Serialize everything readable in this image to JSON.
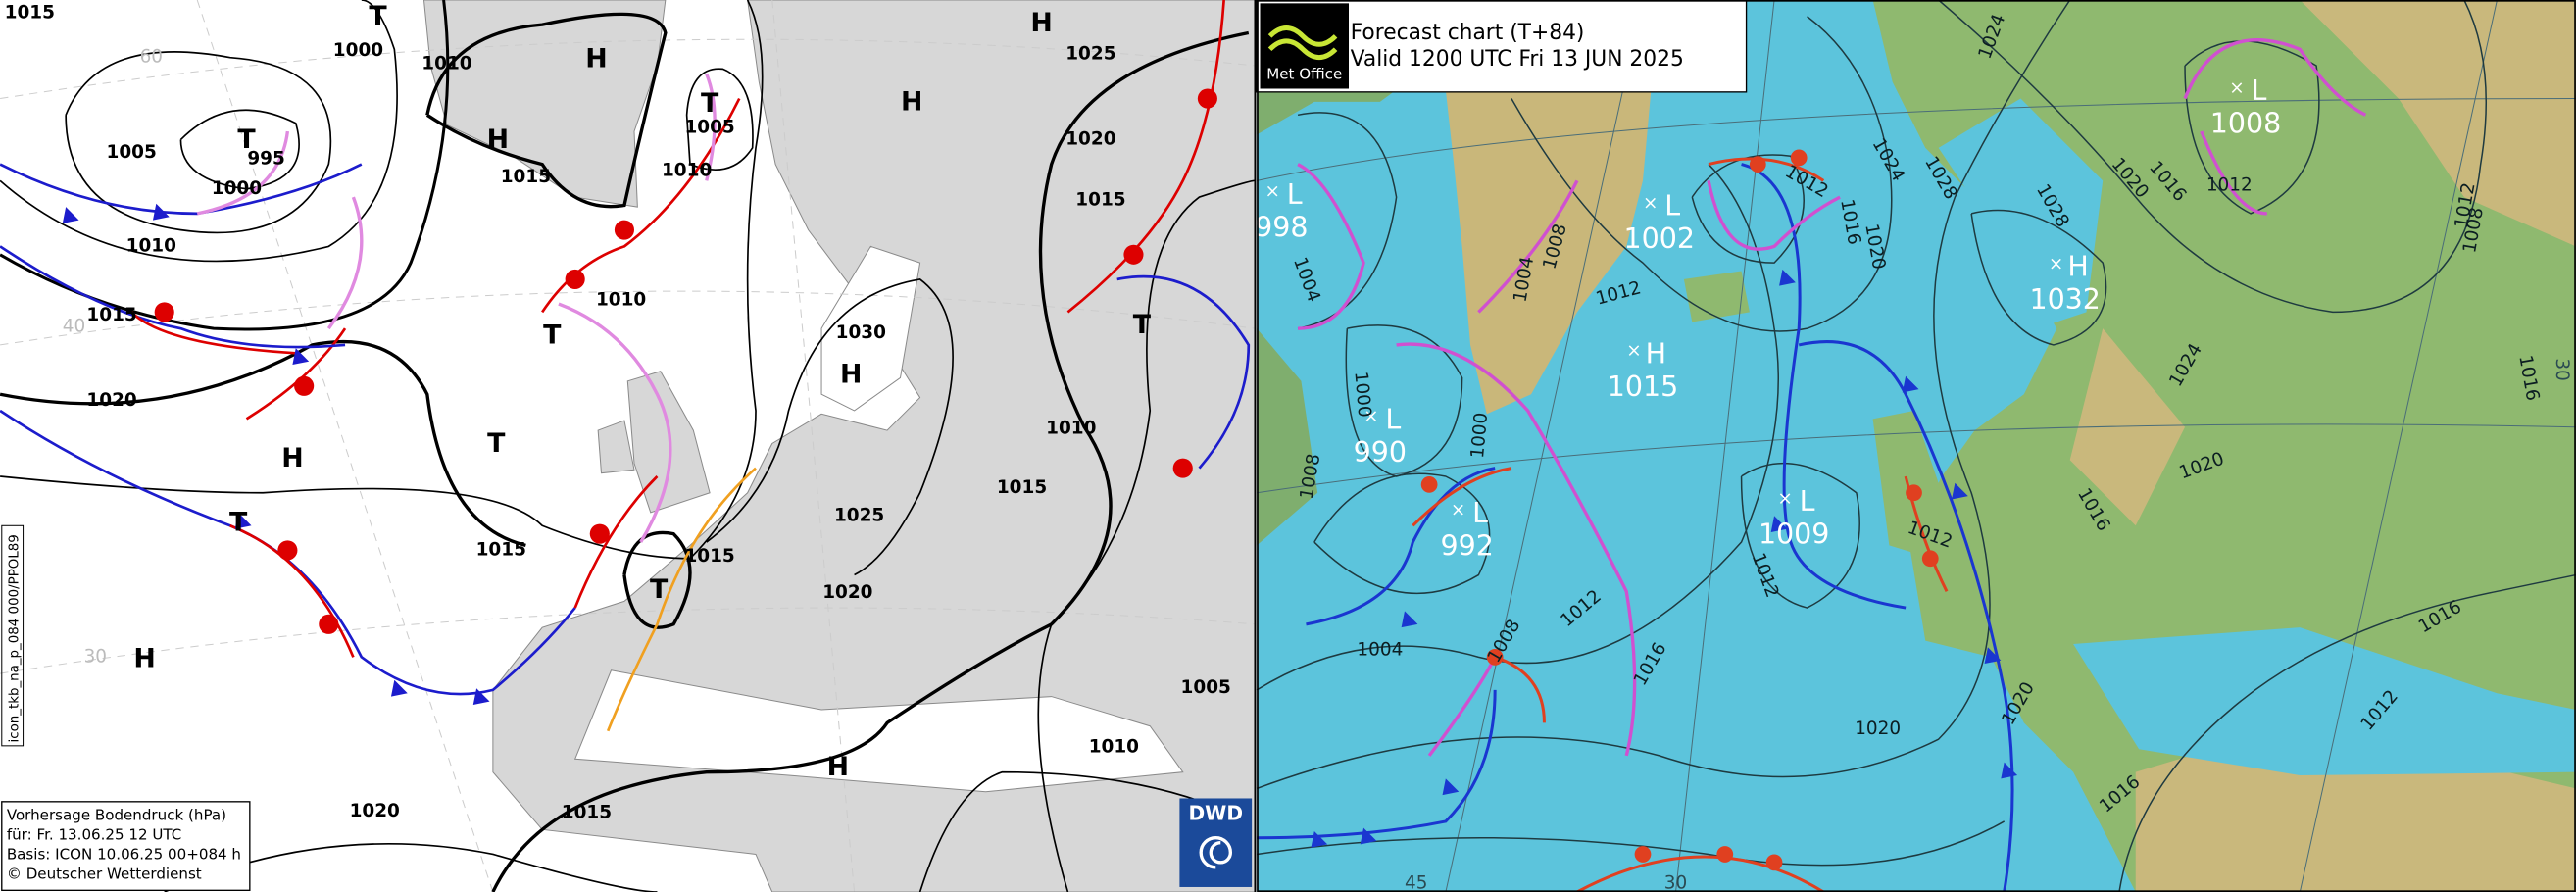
{
  "left_map": {
    "isobar_labels": [
      "1015",
      "1000",
      "1010",
      "1005",
      "995",
      "1000",
      "1010",
      "1015",
      "1005",
      "1010",
      "1010",
      "1015",
      "1020",
      "1015",
      "1015",
      "1030",
      "1025",
      "1020",
      "1025",
      "1020",
      "1015",
      "1010",
      "1015",
      "1005",
      "1010",
      "1020",
      "1015"
    ],
    "centers": [
      "T",
      "H",
      "T",
      "H",
      "T",
      "H",
      "H",
      "T",
      "T",
      "H",
      "H",
      "T",
      "T",
      "T",
      "H",
      "H"
    ],
    "latitude_labels": [
      "60",
      "40",
      "30"
    ],
    "product_id": "icon_tkb_na_p_084 000/PPOL89",
    "info_box": [
      "Vorhersage Bodendruck (hPa)",
      "für:  Fr. 13.06.25  12 UTC",
      "Basis: ICON  10.06.25 00+084 h",
      "© Deutscher Wetterdienst"
    ],
    "logo": "DWD"
  },
  "right_map": {
    "title": "Forecast chart (T+84)",
    "subtitle": "Valid 1200 UTC Fri 13 JUN 2025",
    "logo": "Met Office",
    "centers": [
      {
        "letter": "L",
        "pressure": "998"
      },
      {
        "letter": "L",
        "pressure": "1002"
      },
      {
        "letter": "H",
        "pressure": "1015"
      },
      {
        "letter": "L",
        "pressure": "990"
      },
      {
        "letter": "L",
        "pressure": "992"
      },
      {
        "letter": "L",
        "pressure": "1009"
      },
      {
        "letter": "H",
        "pressure": "1032"
      },
      {
        "letter": "L",
        "pressure": "1008"
      }
    ],
    "isobar_labels": [
      "1024",
      "1012",
      "1016",
      "1020",
      "1024",
      "1028",
      "1028",
      "1020",
      "1016",
      "1012",
      "1012",
      "1008",
      "1024",
      "1016",
      "1020",
      "1016",
      "1016",
      "1012",
      "1016",
      "1012",
      "1020",
      "1020",
      "1004",
      "1008",
      "1012",
      "1016",
      "1012",
      "1000",
      "1000",
      "1008",
      "1004",
      "1004",
      "1008",
      "1012"
    ],
    "latitude_labels": [
      "45",
      "30",
      "30"
    ]
  }
}
